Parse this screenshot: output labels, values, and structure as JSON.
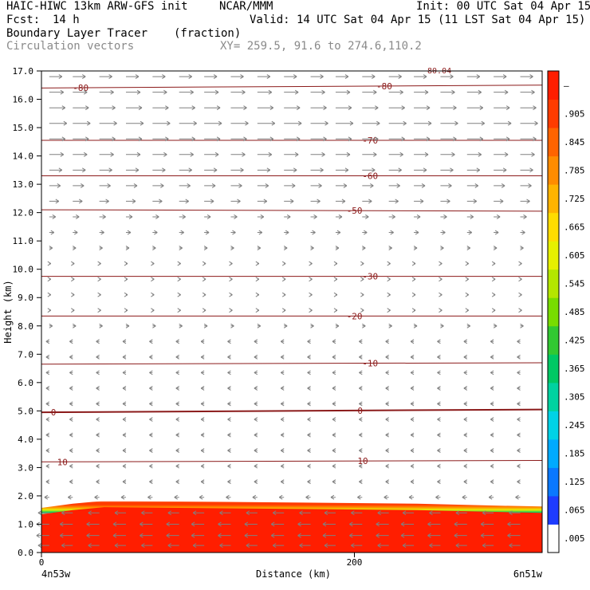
{
  "header": {
    "model_title": "HAIC-HIWC 13km ARW-GFS init",
    "org": "NCAR/MMM",
    "init": "Init: 00 UTC Sat 04 Apr 15",
    "fcst_label": "Fcst:",
    "fcst_value": "14 h",
    "valid": "Valid: 14 UTC Sat 04 Apr 15 (11 LST Sat 04 Apr 15)",
    "field_name": "Boundary Layer Tracer",
    "field_units": "(fraction)",
    "overlay": "Circulation vectors",
    "xy_range": "XY= 259.5, 91.6 to 274.6,110.2"
  },
  "colors": {
    "contour_line": "#8b1a1a",
    "vector": "#808080",
    "header_gray": "#8a8a8a"
  },
  "chart_data": {
    "type": "heatmap",
    "description_source": "vertical cross-section",
    "xlabel": "Distance (km)",
    "ylabel": "Height (km)",
    "xlim": [
      0,
      320
    ],
    "ylim": [
      0,
      17
    ],
    "x_ticks": [
      0,
      200
    ],
    "x_tick_labels": [
      "0",
      "200"
    ],
    "y_ticks": [
      0,
      1,
      2,
      3,
      4,
      5,
      6,
      7,
      8,
      9,
      10,
      11,
      12,
      13,
      14,
      15,
      16,
      17
    ],
    "y_tick_labels": [
      "0.0",
      "1.0",
      "2.0",
      "3.0",
      "4.0",
      "5.0",
      "6.0",
      "7.0",
      "8.0",
      "9.0",
      "10.0",
      "11.0",
      "12.0",
      "13.0",
      "14.0",
      "15.0",
      "16.0",
      "17.0"
    ],
    "x_endpoints": {
      "left": "4n53w",
      "right": "6n51w"
    },
    "tracer_field": {
      "profile_x": [
        0,
        20,
        40,
        80,
        160,
        240,
        300,
        320
      ],
      "top_km": [
        1.55,
        1.7,
        1.8,
        1.78,
        1.74,
        1.7,
        1.62,
        1.6
      ],
      "levels": [
        {
          "z": 0.0,
          "value": 0.95
        },
        {
          "z": 1.45,
          "value": 0.95
        },
        {
          "z": 1.55,
          "value": 0.6
        },
        {
          "z": 1.65,
          "value": 0.35
        },
        {
          "z": 1.75,
          "value": 0.2
        },
        {
          "z": 1.85,
          "value": 0.08
        },
        {
          "z": 1.95,
          "value": 0.04
        },
        {
          "z": 2.0,
          "value": 0.0
        }
      ]
    },
    "temperature_contours": [
      {
        "value": 10,
        "label": "10",
        "x": [
          0,
          320
        ],
        "y": [
          3.2,
          3.25
        ],
        "label_x": [
          10,
          202
        ]
      },
      {
        "value": 0,
        "label": "0",
        "x": [
          0,
          320
        ],
        "y": [
          4.95,
          5.05
        ],
        "label_x": [
          6,
          202
        ]
      },
      {
        "value": -10,
        "label": "-10",
        "x": [
          0,
          320
        ],
        "y": [
          6.65,
          6.7
        ],
        "label_x": [
          205
        ]
      },
      {
        "value": -20,
        "label": "-20",
        "x": [
          0,
          320
        ],
        "y": [
          8.35,
          8.35
        ],
        "label_x": [
          195
        ]
      },
      {
        "value": -30,
        "label": "-30",
        "x": [
          0,
          320
        ],
        "y": [
          9.75,
          9.75
        ],
        "label_x": [
          205
        ]
      },
      {
        "value": -50,
        "label": "-50",
        "x": [
          0,
          320
        ],
        "y": [
          12.1,
          12.05
        ],
        "label_x": [
          195
        ]
      },
      {
        "value": -60,
        "label": "-60",
        "x": [
          0,
          320
        ],
        "y": [
          13.3,
          13.3
        ],
        "label_x": [
          205
        ]
      },
      {
        "value": -70,
        "label": "-70",
        "x": [
          0,
          320
        ],
        "y": [
          14.55,
          14.55
        ],
        "label_x": [
          205
        ]
      },
      {
        "value": -80,
        "label": "-80",
        "x": [
          0,
          320
        ],
        "y": [
          16.4,
          16.5
        ],
        "label_x": [
          20,
          214
        ]
      }
    ],
    "partial_label": "-80.04",
    "colorbar": {
      "tick_labels": [
        "–",
        ".905",
        ".845",
        ".785",
        ".725",
        ".665",
        ".605",
        ".545",
        ".485",
        ".425",
        ".365",
        ".305",
        ".245",
        ".185",
        ".125",
        ".065",
        ".005"
      ],
      "tick_values": [
        0.965,
        0.905,
        0.845,
        0.785,
        0.725,
        0.665,
        0.605,
        0.545,
        0.485,
        0.425,
        0.365,
        0.305,
        0.245,
        0.185,
        0.125,
        0.065,
        0.005
      ],
      "colors": [
        "#ffffff",
        "#1e3cff",
        "#0a78ff",
        "#00aaff",
        "#00d2e6",
        "#00d2a0",
        "#00c864",
        "#32c832",
        "#78dc00",
        "#b4e600",
        "#e6f000",
        "#ffdc00",
        "#ffb400",
        "#ff8c00",
        "#ff6400",
        "#ff3c00",
        "#ff1e00"
      ]
    },
    "vectors": {
      "x_positions": [
        5,
        20,
        37,
        54,
        71,
        88,
        104,
        121,
        138,
        155,
        172,
        188,
        205,
        222,
        238,
        255,
        272,
        289,
        306
      ],
      "levels": [
        {
          "z": 16.8,
          "u": 8,
          "w": 0
        },
        {
          "z": 16.25,
          "u": 9,
          "w": 0
        },
        {
          "z": 15.7,
          "u": 10,
          "w": 0
        },
        {
          "z": 15.15,
          "u": 11,
          "w": 0
        },
        {
          "z": 14.6,
          "u": 10,
          "w": 0
        },
        {
          "z": 14.05,
          "u": 9,
          "w": 0
        },
        {
          "z": 13.5,
          "u": 8,
          "w": 0
        },
        {
          "z": 12.95,
          "u": 7,
          "w": 0
        },
        {
          "z": 12.4,
          "u": 6,
          "w": 0
        },
        {
          "z": 11.85,
          "u": 4,
          "w": 0
        },
        {
          "z": 11.3,
          "u": 3,
          "w": 0
        },
        {
          "z": 10.75,
          "u": 2,
          "w": 0
        },
        {
          "z": 10.2,
          "u": 1,
          "w": 0
        },
        {
          "z": 9.65,
          "u": 1,
          "w": 0
        },
        {
          "z": 9.1,
          "u": 1,
          "w": 0
        },
        {
          "z": 8.55,
          "u": 1,
          "w": 0
        },
        {
          "z": 8.0,
          "u": 2,
          "w": 0
        },
        {
          "z": 7.45,
          "u": -2,
          "w": 0
        },
        {
          "z": 6.9,
          "u": -2,
          "w": 0
        },
        {
          "z": 6.35,
          "u": -2,
          "w": 0
        },
        {
          "z": 5.8,
          "u": -2,
          "w": 0
        },
        {
          "z": 5.25,
          "u": -2,
          "w": 0
        },
        {
          "z": 4.7,
          "u": -2,
          "w": 0
        },
        {
          "z": 4.15,
          "u": -2,
          "w": 0
        },
        {
          "z": 3.6,
          "u": -2,
          "w": 0
        },
        {
          "z": 3.05,
          "u": -2,
          "w": 0
        },
        {
          "z": 2.5,
          "u": -2,
          "w": 0
        },
        {
          "z": 1.95,
          "u": -3,
          "w": 0
        },
        {
          "z": 1.4,
          "u": -7,
          "w": 0
        },
        {
          "z": 1.0,
          "u": -8,
          "w": 0
        },
        {
          "z": 0.6,
          "u": -8,
          "w": 0
        },
        {
          "z": 0.25,
          "u": -7,
          "w": 0
        }
      ]
    }
  }
}
